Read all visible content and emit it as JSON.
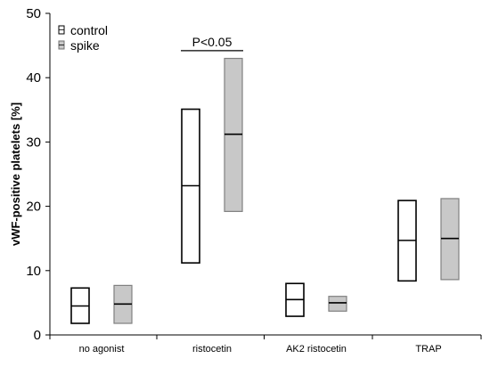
{
  "chart_data": {
    "type": "box",
    "title": "",
    "xlabel": "",
    "ylabel": "vWF-positive platelets [%]",
    "ylim": [
      0,
      50
    ],
    "yticks": [
      0,
      10,
      20,
      30,
      40,
      50
    ],
    "grid": false,
    "legend_position": "top-left",
    "categories": [
      "no agonist",
      "ristocetin",
      "AK2 ristocetin",
      "TRAP"
    ],
    "series": [
      {
        "name": "control",
        "color": "#ffffff",
        "boxes": [
          {
            "low": 1.8,
            "median": 4.5,
            "high": 7.3
          },
          {
            "low": 11.2,
            "median": 23.2,
            "high": 35.1
          },
          {
            "low": 2.9,
            "median": 5.5,
            "high": 8.0
          },
          {
            "low": 8.4,
            "median": 14.7,
            "high": 20.9
          }
        ]
      },
      {
        "name": "spike",
        "color": "#c8c8c8",
        "boxes": [
          {
            "low": 1.8,
            "median": 4.8,
            "high": 7.7
          },
          {
            "low": 19.2,
            "median": 31.2,
            "high": 43.0
          },
          {
            "low": 3.7,
            "median": 5.0,
            "high": 6.0
          },
          {
            "low": 8.6,
            "median": 15.0,
            "high": 21.2
          }
        ]
      }
    ],
    "annotations": [
      {
        "text": "P<0.05",
        "category": "ristocetin",
        "y": 44.2
      }
    ]
  }
}
